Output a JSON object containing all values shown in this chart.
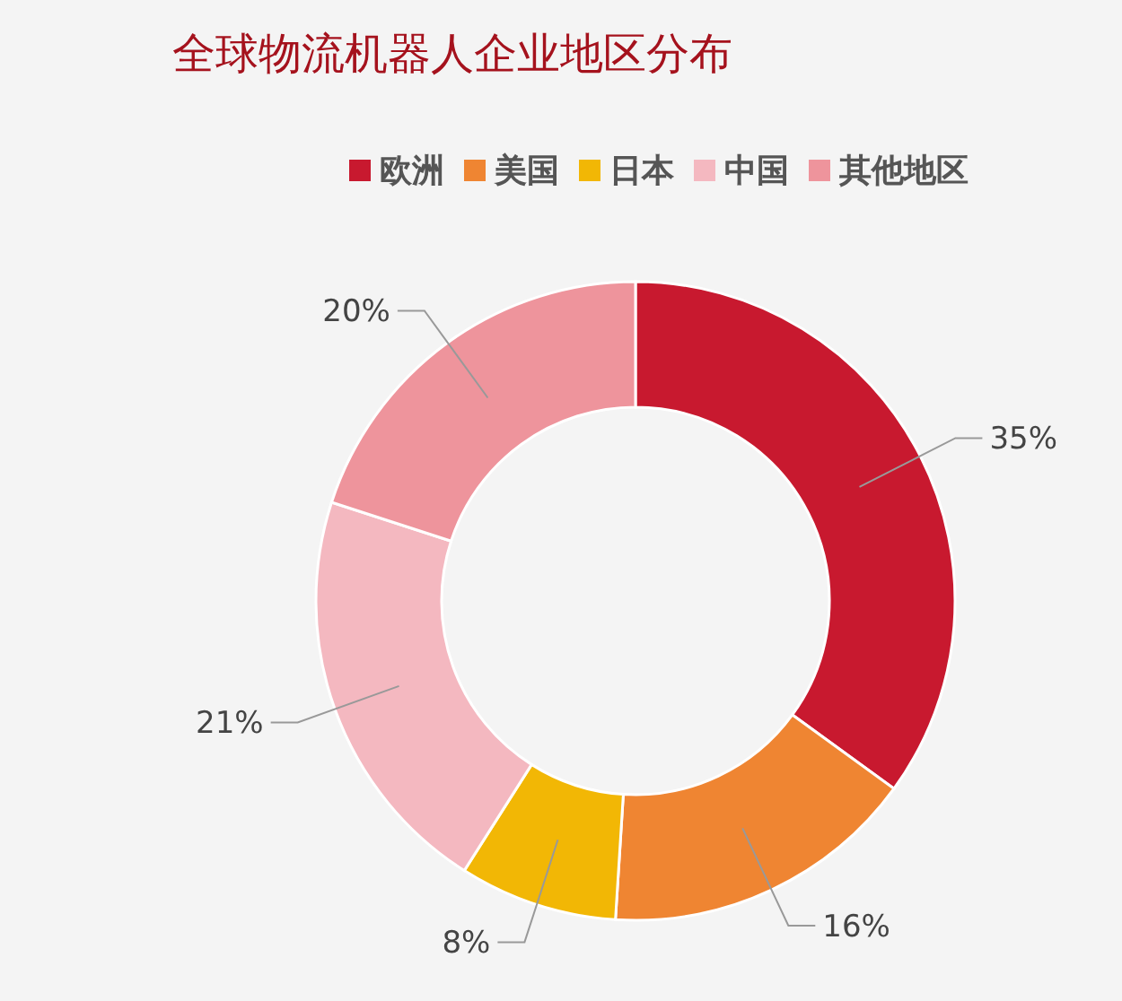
{
  "chart_data": {
    "type": "donut",
    "title": "全球物流机器人企业地区分布",
    "categories": [
      "欧洲",
      "美国",
      "日本",
      "中国",
      "其他地区"
    ],
    "values": [
      35,
      16,
      8,
      21,
      20
    ],
    "colors": [
      "#c8192f",
      "#ef8532",
      "#f2b705",
      "#f4b8c0",
      "#ee949c"
    ],
    "value_labels": [
      "35%",
      "16%",
      "8%",
      "21%",
      "20%"
    ],
    "legend": "top"
  }
}
